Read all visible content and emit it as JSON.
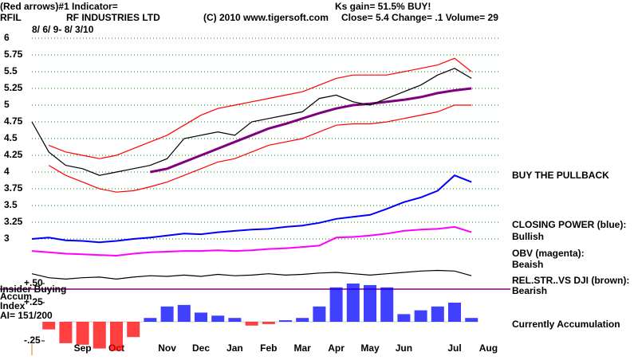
{
  "chart_data": {
    "type": "line",
    "title": "RF INDUSTRIES LTD",
    "annotations": [
      "(Red arrows)#1 Indicator=",
      "Ks gain= 51.5% BUY!",
      "RFIL",
      "(C) 2010 www.tigersoft.com",
      "Close=  5.4  Change= .1  Volume= 29",
      "8/ 6/ 9- 8/ 3/10",
      "BUY THE PULLBACK",
      "CLOSING POWER (blue):",
      "Bullish",
      "OBV (magenta):",
      "Beaish",
      "REL.STR..VS DJI (brown):",
      "Bearish",
      "Insider Buying",
      "Accum",
      "Index",
      "AI= 151/200",
      "Currently Accumulation"
    ],
    "categories": [
      null,
      null,
      null,
      "Sep",
      null,
      "Oct",
      null,
      null,
      "Nov",
      null,
      "Dec",
      null,
      "Jan",
      null,
      "Feb",
      null,
      "Mar",
      null,
      "Apr",
      null,
      "May",
      null,
      "Jun",
      null,
      null,
      "Jul",
      null,
      "Aug"
    ],
    "ylim": [
      2.3,
      6.1
    ],
    "yticks": [
      6,
      5.75,
      5.5,
      5.25,
      5,
      4.75,
      4.5,
      4.25,
      4,
      3.75,
      3.5,
      3.25,
      3
    ],
    "y2lim": [
      -0.45,
      0.55
    ],
    "y2ticks": [
      {
        "value": 0.5,
        "label": "+.50"
      },
      {
        "value": 0.25,
        "label": "+.25"
      },
      {
        "value": -0.25,
        "label": "-.25"
      }
    ],
    "grid": true,
    "grid_color": "#008000",
    "series": [
      {
        "name": "Upper band",
        "color": "#ff0000",
        "values": [
          null,
          4.4,
          4.3,
          4.25,
          4.2,
          4.25,
          4.35,
          4.45,
          4.55,
          4.7,
          4.85,
          4.95,
          5.0,
          5.05,
          5.1,
          5.15,
          5.2,
          5.3,
          5.4,
          5.45,
          5.45,
          5.45,
          5.5,
          5.55,
          5.6,
          5.7,
          5.5,
          null
        ]
      },
      {
        "name": "Lower band",
        "color": "#ff0000",
        "values": [
          null,
          4.1,
          3.95,
          3.85,
          3.75,
          3.7,
          3.72,
          3.78,
          3.85,
          3.95,
          4.05,
          4.15,
          4.2,
          4.3,
          4.4,
          4.45,
          4.5,
          4.6,
          4.7,
          4.72,
          4.72,
          4.75,
          4.8,
          4.85,
          4.9,
          5.0,
          5.0,
          null
        ]
      },
      {
        "name": "Moving average",
        "color": "#800080",
        "values": [
          null,
          null,
          null,
          null,
          null,
          null,
          null,
          4.0,
          4.05,
          4.15,
          4.25,
          4.35,
          4.45,
          4.55,
          4.65,
          4.72,
          4.8,
          4.88,
          4.95,
          5.0,
          5.02,
          5.05,
          5.08,
          5.12,
          5.18,
          5.22,
          5.25,
          null
        ]
      },
      {
        "name": "Price",
        "color": "#000000",
        "values": [
          4.75,
          4.3,
          4.1,
          4.05,
          3.95,
          4.0,
          4.05,
          4.1,
          4.2,
          4.5,
          4.55,
          4.6,
          4.55,
          4.75,
          4.8,
          4.85,
          4.9,
          5.1,
          5.15,
          5.05,
          5.0,
          5.1,
          5.2,
          5.3,
          5.45,
          5.55,
          5.4,
          null
        ]
      },
      {
        "name": "Closing Power",
        "color": "#0000ff",
        "values": [
          3.0,
          3.02,
          2.98,
          2.97,
          2.95,
          2.97,
          3.0,
          3.02,
          3.05,
          3.08,
          3.07,
          3.1,
          3.12,
          3.14,
          3.15,
          3.18,
          3.2,
          3.24,
          3.3,
          3.33,
          3.36,
          3.45,
          3.55,
          3.62,
          3.72,
          3.95,
          3.85,
          null
        ]
      },
      {
        "name": "OBV",
        "color": "#ff00ff",
        "values": [
          2.82,
          2.8,
          2.78,
          2.77,
          2.76,
          2.75,
          2.78,
          2.8,
          2.81,
          2.82,
          2.82,
          2.83,
          2.82,
          2.83,
          2.85,
          2.86,
          2.88,
          2.9,
          3.02,
          3.03,
          3.05,
          3.08,
          3.12,
          3.14,
          3.15,
          3.18,
          3.1,
          null
        ]
      },
      {
        "name": "Rel Str vs DJI",
        "color": "#000000",
        "values": [
          2.48,
          2.42,
          2.4,
          2.42,
          2.43,
          2.4,
          2.43,
          2.45,
          2.44,
          2.46,
          2.44,
          2.47,
          2.45,
          2.46,
          2.48,
          2.46,
          2.47,
          2.49,
          2.5,
          2.48,
          2.46,
          2.48,
          2.5,
          2.52,
          2.53,
          2.52,
          2.45,
          null
        ]
      },
      {
        "name": "Accum Index",
        "type": "bar",
        "axis": "y2",
        "color": "#0000ff",
        "negative_color": "#ff0000",
        "values": [
          null,
          -0.1,
          -0.28,
          -0.3,
          -0.35,
          -0.38,
          -0.2,
          0.05,
          0.2,
          0.22,
          0.12,
          0.08,
          0.05,
          -0.05,
          -0.03,
          0.02,
          0.05,
          0.2,
          0.45,
          0.5,
          0.48,
          0.45,
          0.1,
          0.15,
          0.2,
          0.25,
          0.05,
          null
        ]
      }
    ]
  }
}
